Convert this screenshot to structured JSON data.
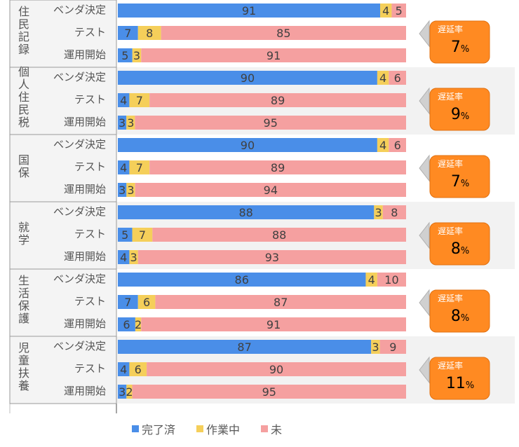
{
  "chart_data": {
    "type": "bar",
    "orientation": "horizontal",
    "stacked": "percent",
    "legend": [
      {
        "name": "完了済",
        "color": "#4a8ee8"
      },
      {
        "name": "作業中",
        "color": "#f5cf5a"
      },
      {
        "name": "未",
        "color": "#f5a0a0"
      }
    ],
    "groups": [
      {
        "name": "住民記録",
        "delay_label": "遅延率",
        "delay_value": "7",
        "delay_unit": "%",
        "rows": [
          {
            "label": "ベンダ決定",
            "values": [
              91,
              4,
              5
            ]
          },
          {
            "label": "テスト",
            "values": [
              7,
              8,
              85
            ]
          },
          {
            "label": "運用開始",
            "values": [
              5,
              3,
              91
            ]
          }
        ]
      },
      {
        "name": "個人住民税",
        "delay_label": "遅延率",
        "delay_value": "9",
        "delay_unit": "%",
        "rows": [
          {
            "label": "ベンダ決定",
            "values": [
              90,
              4,
              6
            ]
          },
          {
            "label": "テスト",
            "values": [
              4,
              7,
              89
            ]
          },
          {
            "label": "運用開始",
            "values": [
              3,
              3,
              95
            ]
          }
        ]
      },
      {
        "name": "国保",
        "delay_label": "遅延率",
        "delay_value": "7",
        "delay_unit": "%",
        "rows": [
          {
            "label": "ベンダ決定",
            "values": [
              90,
              4,
              6
            ]
          },
          {
            "label": "テスト",
            "values": [
              4,
              7,
              89
            ]
          },
          {
            "label": "運用開始",
            "values": [
              3,
              3,
              94
            ]
          }
        ]
      },
      {
        "name": "就学",
        "delay_label": "遅延率",
        "delay_value": "8",
        "delay_unit": "%",
        "rows": [
          {
            "label": "ベンダ決定",
            "values": [
              88,
              3,
              8
            ]
          },
          {
            "label": "テスト",
            "values": [
              5,
              7,
              88
            ]
          },
          {
            "label": "運用開始",
            "values": [
              4,
              3,
              93
            ]
          }
        ]
      },
      {
        "name": "生活保護",
        "delay_label": "遅延率",
        "delay_value": "8",
        "delay_unit": "%",
        "rows": [
          {
            "label": "ベンダ決定",
            "values": [
              86,
              4,
              10
            ]
          },
          {
            "label": "テスト",
            "values": [
              7,
              6,
              87
            ]
          },
          {
            "label": "運用開始",
            "values": [
              6,
              2,
              91
            ]
          }
        ]
      },
      {
        "name": "児童扶養",
        "delay_label": "遅延率",
        "delay_value": "11",
        "delay_unit": "%",
        "rows": [
          {
            "label": "ベンダ決定",
            "values": [
              87,
              3,
              9
            ]
          },
          {
            "label": "テスト",
            "values": [
              4,
              6,
              90
            ]
          },
          {
            "label": "運用開始",
            "values": [
              3,
              2,
              95
            ]
          }
        ]
      }
    ]
  }
}
